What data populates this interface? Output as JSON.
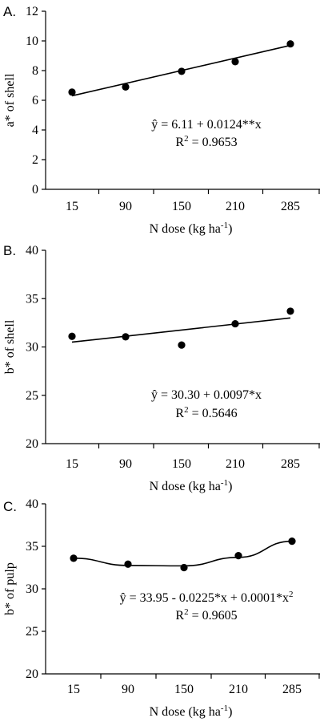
{
  "chart_data": [
    {
      "panel_label": "A.",
      "type": "scatter",
      "x_categories": [
        "15",
        "90",
        "150",
        "210",
        "285"
      ],
      "points": [
        {
          "x": "15",
          "y": 6.55
        },
        {
          "x": "90",
          "y": 6.9
        },
        {
          "x": "150",
          "y": 7.95
        },
        {
          "x": "210",
          "y": 8.6
        },
        {
          "x": "285",
          "y": 9.8
        }
      ],
      "trend": {
        "kind": "linear",
        "start": 6.3,
        "end": 9.7
      },
      "ylim": [
        0,
        12
      ],
      "yticks": [
        "0",
        "2",
        "4",
        "6",
        "8",
        "10",
        "12"
      ],
      "ylabel": "a* of shell",
      "xlabel": "N dose (kg ha",
      "xlabel_sup": "-1",
      "xlabel_end": ")",
      "equation": "ŷ = 6.11 + 0.0124**x",
      "r2_label": "R",
      "r2_value": " = 0.9653"
    },
    {
      "panel_label": "B.",
      "type": "scatter",
      "x_categories": [
        "15",
        "90",
        "150",
        "210",
        "285"
      ],
      "points": [
        {
          "x": "15",
          "y": 31.1
        },
        {
          "x": "90",
          "y": 31.05
        },
        {
          "x": "150",
          "y": 30.2
        },
        {
          "x": "210",
          "y": 32.4
        },
        {
          "x": "285",
          "y": 33.7
        }
      ],
      "trend": {
        "kind": "linear",
        "start": 30.5,
        "end": 33.0
      },
      "ylim": [
        20,
        40
      ],
      "yticks": [
        "20",
        "25",
        "30",
        "35",
        "40"
      ],
      "ylabel": "b* of shell",
      "xlabel": "N dose (kg ha",
      "xlabel_sup": "-1",
      "xlabel_end": ")",
      "equation": "ŷ = 30.30 + 0.0097*x",
      "r2_label": "R",
      "r2_value": " = 0.5646"
    },
    {
      "panel_label": "C.",
      "type": "scatter",
      "x_categories": [
        "15",
        "90",
        "150",
        "210",
        "285"
      ],
      "points": [
        {
          "x": "15",
          "y": 33.6
        },
        {
          "x": "90",
          "y": 32.9
        },
        {
          "x": "150",
          "y": 32.5
        },
        {
          "x": "210",
          "y": 33.9
        },
        {
          "x": "285",
          "y": 35.6
        }
      ],
      "trend": {
        "kind": "quadratic",
        "fitted": [
          33.6,
          32.75,
          32.7,
          33.7,
          35.6
        ]
      },
      "ylim": [
        20,
        40
      ],
      "yticks": [
        "20",
        "25",
        "30",
        "35",
        "40"
      ],
      "ylabel": "b* of pulp",
      "xlabel": "N dose (kg ha",
      "xlabel_sup": "-1",
      "xlabel_end": ")",
      "equation": "ŷ = 33.95 - 0.0225*x + 0.0001*x",
      "equation_sup": "2",
      "r2_label": "R",
      "r2_value": " = 0.9605"
    }
  ]
}
